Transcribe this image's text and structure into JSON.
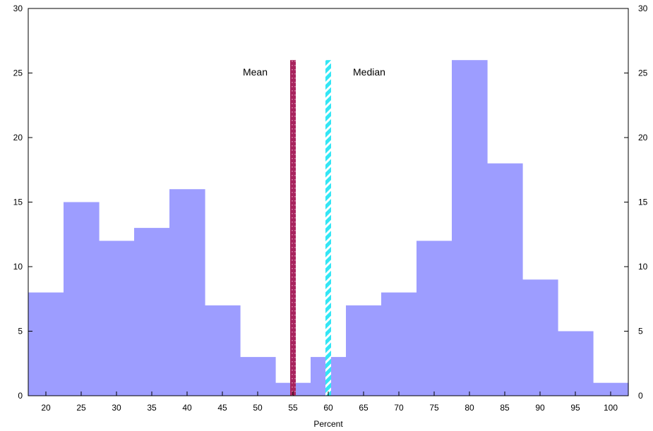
{
  "chart_data": {
    "type": "bar",
    "xlabel": "Percent",
    "ylabel": "",
    "ylim": [
      0,
      30
    ],
    "xlim": [
      17.5,
      102.5
    ],
    "y_ticks": [
      0,
      5,
      10,
      15,
      20,
      25,
      30
    ],
    "x_ticks": [
      20,
      25,
      30,
      35,
      40,
      45,
      50,
      55,
      60,
      65,
      70,
      75,
      80,
      85,
      90,
      95,
      100
    ],
    "bin_width": 5,
    "bins": [
      {
        "center": 20,
        "value": 8
      },
      {
        "center": 25,
        "value": 15
      },
      {
        "center": 30,
        "value": 12
      },
      {
        "center": 35,
        "value": 13
      },
      {
        "center": 40,
        "value": 16
      },
      {
        "center": 45,
        "value": 7
      },
      {
        "center": 50,
        "value": 3
      },
      {
        "center": 55,
        "value": 1
      },
      {
        "center": 60,
        "value": 3
      },
      {
        "center": 65,
        "value": 7
      },
      {
        "center": 70,
        "value": 8
      },
      {
        "center": 75,
        "value": 12
      },
      {
        "center": 80,
        "value": 26
      },
      {
        "center": 85,
        "value": 18
      },
      {
        "center": 90,
        "value": 9
      },
      {
        "center": 95,
        "value": 5
      },
      {
        "center": 100,
        "value": 1
      }
    ],
    "reference_lines": [
      {
        "label": "Mean",
        "x": 55,
        "height": 26,
        "color": "#a8245e",
        "style": "dotted"
      },
      {
        "label": "Median",
        "x": 60,
        "height": 26,
        "color": "#33e6f5",
        "style": "striped"
      }
    ],
    "bar_color": "#9d9dff",
    "grid": false,
    "legend": "none"
  }
}
